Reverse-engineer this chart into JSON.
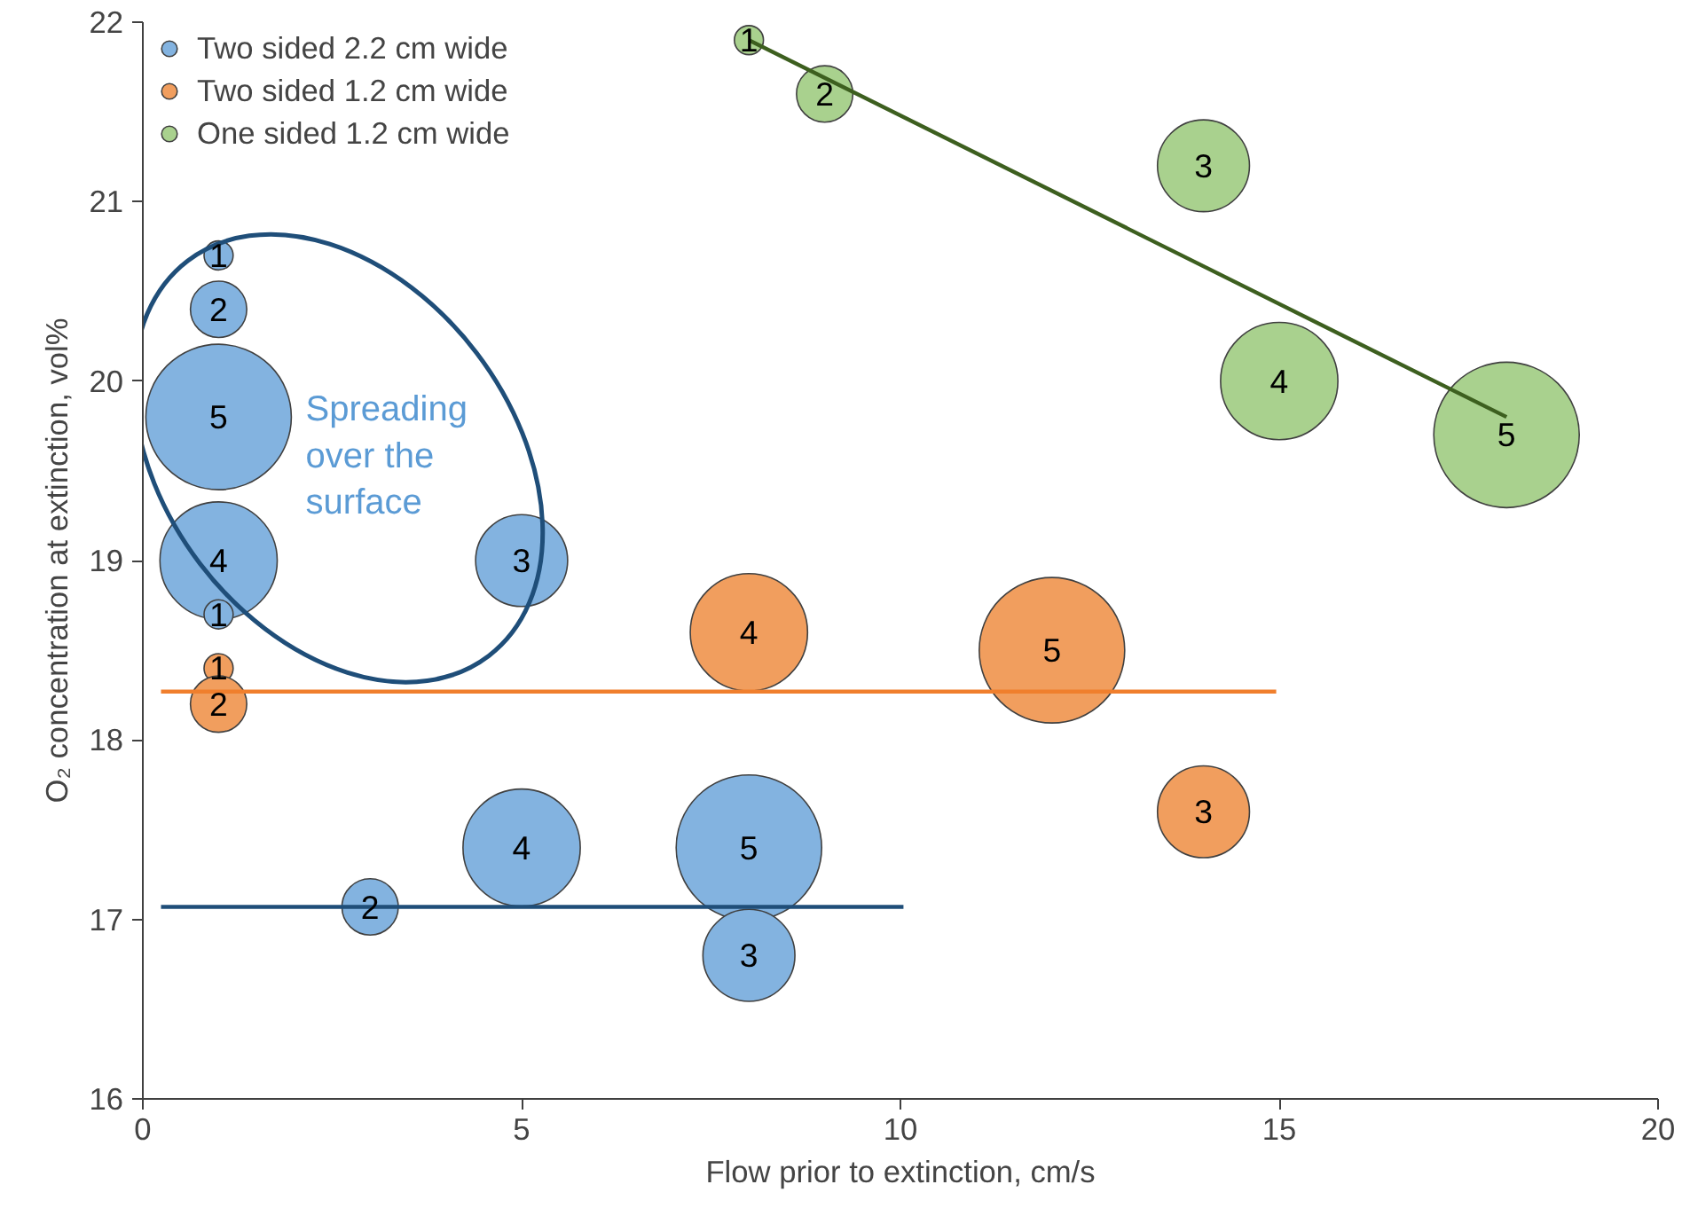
{
  "chart_data": {
    "type": "bubble",
    "xlabel": "Flow prior to extinction, cm/s",
    "ylabel": "O₂ concentration at extinction, vol%",
    "xlim": [
      0,
      20
    ],
    "xticks": [
      0,
      5,
      10,
      15,
      20
    ],
    "ylim": [
      16,
      22
    ],
    "yticks": [
      16,
      17,
      18,
      19,
      20,
      21,
      22
    ],
    "grid": false,
    "legend": "top left",
    "marker": "circle",
    "annotations": [
      "Spreading over the surface",
      {
        "text": "1",
        "x": 1,
        "y": 20.7
      },
      {
        "text": "2",
        "x": 1,
        "y": 20.4
      },
      {
        "text": "5",
        "x": 1,
        "y": 19.8
      },
      {
        "text": "4",
        "x": 1,
        "y": 19.0
      },
      {
        "text": "1",
        "x": 1,
        "y": 18.7
      },
      {
        "text": "3",
        "x": 5,
        "y": 19.0
      },
      {
        "text": "2",
        "x": 3,
        "y": 17.07
      },
      {
        "text": "4",
        "x": 5,
        "y": 17.4
      },
      {
        "text": "5",
        "x": 8,
        "y": 17.4
      },
      {
        "text": "3",
        "x": 8,
        "y": 16.8
      },
      {
        "text": "1",
        "x": 1,
        "y": 18.4
      },
      {
        "text": "2",
        "x": 1,
        "y": 18.2
      },
      {
        "text": "4",
        "x": 8,
        "y": 18.6
      },
      {
        "text": "5",
        "x": 12,
        "y": 18.5
      },
      {
        "text": "3",
        "x": 14,
        "y": 17.6
      },
      {
        "text": "1",
        "x": 8,
        "y": 21.9
      },
      {
        "text": "2",
        "x": 9,
        "y": 21.6
      },
      {
        "text": "3",
        "x": 14,
        "y": 21.2
      },
      {
        "text": "4",
        "x": 15,
        "y": 20.0
      },
      {
        "text": "5",
        "x": 18,
        "y": 19.7
      }
    ],
    "series": [
      {
        "name": "Two sided 2.2 cm wide",
        "color": "#83b3e0",
        "x": [
          1,
          1,
          1,
          1,
          1,
          5,
          3,
          5,
          8,
          8
        ],
        "values": [
          20.7,
          20.4,
          19.8,
          19.0,
          18.7,
          19.0,
          17.07,
          17.4,
          17.4,
          16.8
        ],
        "sizes": [
          0.04,
          0.15,
          1,
          0.65,
          0.04,
          0.4,
          0.15,
          0.65,
          1,
          0.4
        ]
      },
      {
        "name": "Two sided 1.2 cm wide",
        "color": "#f19e5e",
        "x": [
          1,
          1,
          8,
          12,
          14
        ],
        "values": [
          18.4,
          18.2,
          18.6,
          18.5,
          17.6
        ],
        "sizes": [
          0.04,
          0.15,
          0.65,
          1,
          0.4
        ]
      },
      {
        "name": "One sided 1.2 cm wide",
        "color": "#a9d18e",
        "x": [
          8,
          9,
          14,
          15,
          18
        ],
        "values": [
          21.9,
          21.6,
          21.2,
          20.0,
          19.7
        ],
        "sizes": [
          0.04,
          0.15,
          0.4,
          0.65,
          1
        ]
      },
      {
        "type": "line",
        "marker": "none",
        "color": "#1f4e79",
        "x": [
          0.24,
          10.04
        ],
        "values": [
          17.07,
          17.07
        ]
      },
      {
        "type": "line",
        "marker": "none",
        "color": "#f07f2d",
        "x": [
          0.24,
          14.96
        ],
        "values": [
          18.27,
          18.27
        ]
      },
      {
        "type": "line",
        "marker": "none",
        "color": "#3d5f1f",
        "x": [
          8,
          18
        ],
        "values": [
          21.9,
          19.8
        ]
      }
    ]
  }
}
